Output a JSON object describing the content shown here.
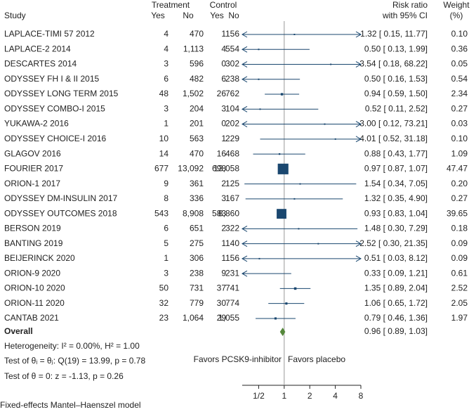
{
  "chart_data": {
    "type": "forest",
    "header": {
      "study": "Study",
      "treatment": "Treatment",
      "control": "Control",
      "treatment_cols": [
        "Yes",
        "No"
      ],
      "control_cols": [
        "Yes",
        "No"
      ],
      "ratio": [
        "Risk ratio",
        "with 95% CI"
      ],
      "weight": [
        "Weight",
        "(%)"
      ]
    },
    "categories": [
      "LAPLACE-TIMI 57 2012",
      "LAPLACE-2 2014",
      "DESCARTES 2014",
      "ODYSSEY FH I & II 2015",
      "ODYSSEY LONG TERM 2015",
      "ODYSSEY COMBO-I 2015",
      "YUKAWA-2 2016",
      "ODYSSEY CHOICE-I 2016",
      "GLAGOV 2016",
      "FOURIER 2017",
      "ORION-1 2017",
      "ODYSSEY DM-INSULIN 2017",
      "ODYSSEY OUTCOMES 2018",
      "BERSON 2019",
      "BANTING 2019",
      "BEIJERINCK 2020",
      "ORION-9 2020",
      "ORION-10 2020",
      "ORION-11 2020",
      "CANTAB 2021"
    ],
    "counts": [
      [
        "4",
        "470",
        "1",
        "156"
      ],
      [
        "4",
        "1,113",
        "4",
        "554"
      ],
      [
        "3",
        "596",
        "0",
        "302"
      ],
      [
        "6",
        "482",
        "6",
        "238"
      ],
      [
        "48",
        "1,502",
        "26",
        "762"
      ],
      [
        "3",
        "204",
        "3",
        "104"
      ],
      [
        "1",
        "201",
        "0",
        "202"
      ],
      [
        "10",
        "563",
        "1",
        "229"
      ],
      [
        "14",
        "470",
        "16",
        "468"
      ],
      [
        "677",
        "13,092",
        "698",
        "13,058"
      ],
      [
        "9",
        "361",
        "2",
        "125"
      ],
      [
        "8",
        "336",
        "3",
        "167"
      ],
      [
        "543",
        "8,908",
        "583",
        "8,860"
      ],
      [
        "6",
        "651",
        "2",
        "322"
      ],
      [
        "5",
        "275",
        "1",
        "140"
      ],
      [
        "1",
        "306",
        "1",
        "156"
      ],
      [
        "3",
        "238",
        "9",
        "231"
      ],
      [
        "50",
        "731",
        "37",
        "741"
      ],
      [
        "32",
        "779",
        "30",
        "774"
      ],
      [
        "23",
        "1,064",
        "29",
        "1,055"
      ]
    ],
    "rr": [
      1.32,
      0.5,
      3.54,
      0.5,
      0.94,
      0.52,
      3.0,
      4.01,
      0.88,
      0.97,
      1.54,
      1.32,
      0.93,
      1.48,
      2.52,
      0.51,
      0.33,
      1.35,
      1.06,
      0.79
    ],
    "ci_lower": [
      0.15,
      0.13,
      0.18,
      0.16,
      0.59,
      0.11,
      0.12,
      0.52,
      0.43,
      0.87,
      0.34,
      0.35,
      0.83,
      0.3,
      0.3,
      0.03,
      0.09,
      0.89,
      0.65,
      0.46
    ],
    "ci_upper": [
      11.77,
      1.99,
      68.22,
      1.53,
      1.5,
      2.52,
      73.21,
      31.18,
      1.77,
      1.07,
      7.05,
      4.9,
      1.04,
      7.29,
      21.35,
      8.12,
      1.21,
      2.04,
      1.72,
      1.36
    ],
    "ci_labels": [
      "1.32 [ 0.15, 11.77]",
      "0.50 [ 0.13, 1.99]",
      "3.54 [ 0.18, 68.22]",
      "0.50 [ 0.16, 1.53]",
      "0.94 [ 0.59, 1.50]",
      "0.52 [ 0.11, 2.52]",
      "3.00 [ 0.12, 73.21]",
      "4.01 [ 0.52, 31.18]",
      "0.88 [ 0.43, 1.77]",
      "0.97 [ 0.87, 1.07]",
      "1.54 [ 0.34, 7.05]",
      "1.32 [ 0.35, 4.90]",
      "0.93 [ 0.83, 1.04]",
      "1.48 [ 0.30, 7.29]",
      "2.52 [ 0.30, 21.35]",
      "0.51 [ 0.03, 8.12]",
      "0.33 [ 0.09, 1.21]",
      "1.35 [ 0.89, 2.04]",
      "1.06 [ 0.65, 1.72]",
      "0.79 [ 0.46, 1.36]"
    ],
    "weights": [
      0.1,
      0.36,
      0.05,
      0.54,
      2.34,
      0.27,
      0.03,
      0.1,
      1.09,
      47.47,
      0.2,
      0.27,
      39.65,
      0.18,
      0.09,
      0.09,
      0.61,
      2.52,
      2.05,
      1.97
    ],
    "weight_labels": [
      "0.10",
      "0.36",
      "0.05",
      "0.54",
      "2.34",
      "0.27",
      "0.03",
      "0.10",
      "1.09",
      "47.47",
      "0.20",
      "0.27",
      "39.65",
      "0.18",
      "0.09",
      "0.09",
      "0.61",
      "2.52",
      "2.05",
      "1.97"
    ],
    "overall": {
      "label": "Overall",
      "rr": 0.96,
      "ci_lower": 0.89,
      "ci_upper": 1.03,
      "ci_label": "0.96 [ 0.89, 1.03]"
    },
    "notes": [
      "Heterogeneity: I² = 0.00%, H² = 1.00",
      "Test of θᵢ = θⱼ: Q(19) = 13.99, p = 0.78",
      "Test of θ = 0: z = -1.13, p = 0.26"
    ],
    "favors": [
      "Favors PCSK9-inhibitor",
      "Favors placebo"
    ],
    "footer": "Fixed-effects Mantel–Haenszel model",
    "xscale": "log",
    "xlim": [
      0.32,
      8
    ],
    "xticks": [
      {
        "value": 0.5,
        "label": "1/2"
      },
      1,
      2,
      4,
      8
    ],
    "color": "#1a476f",
    "overall_color": "#55883b"
  }
}
